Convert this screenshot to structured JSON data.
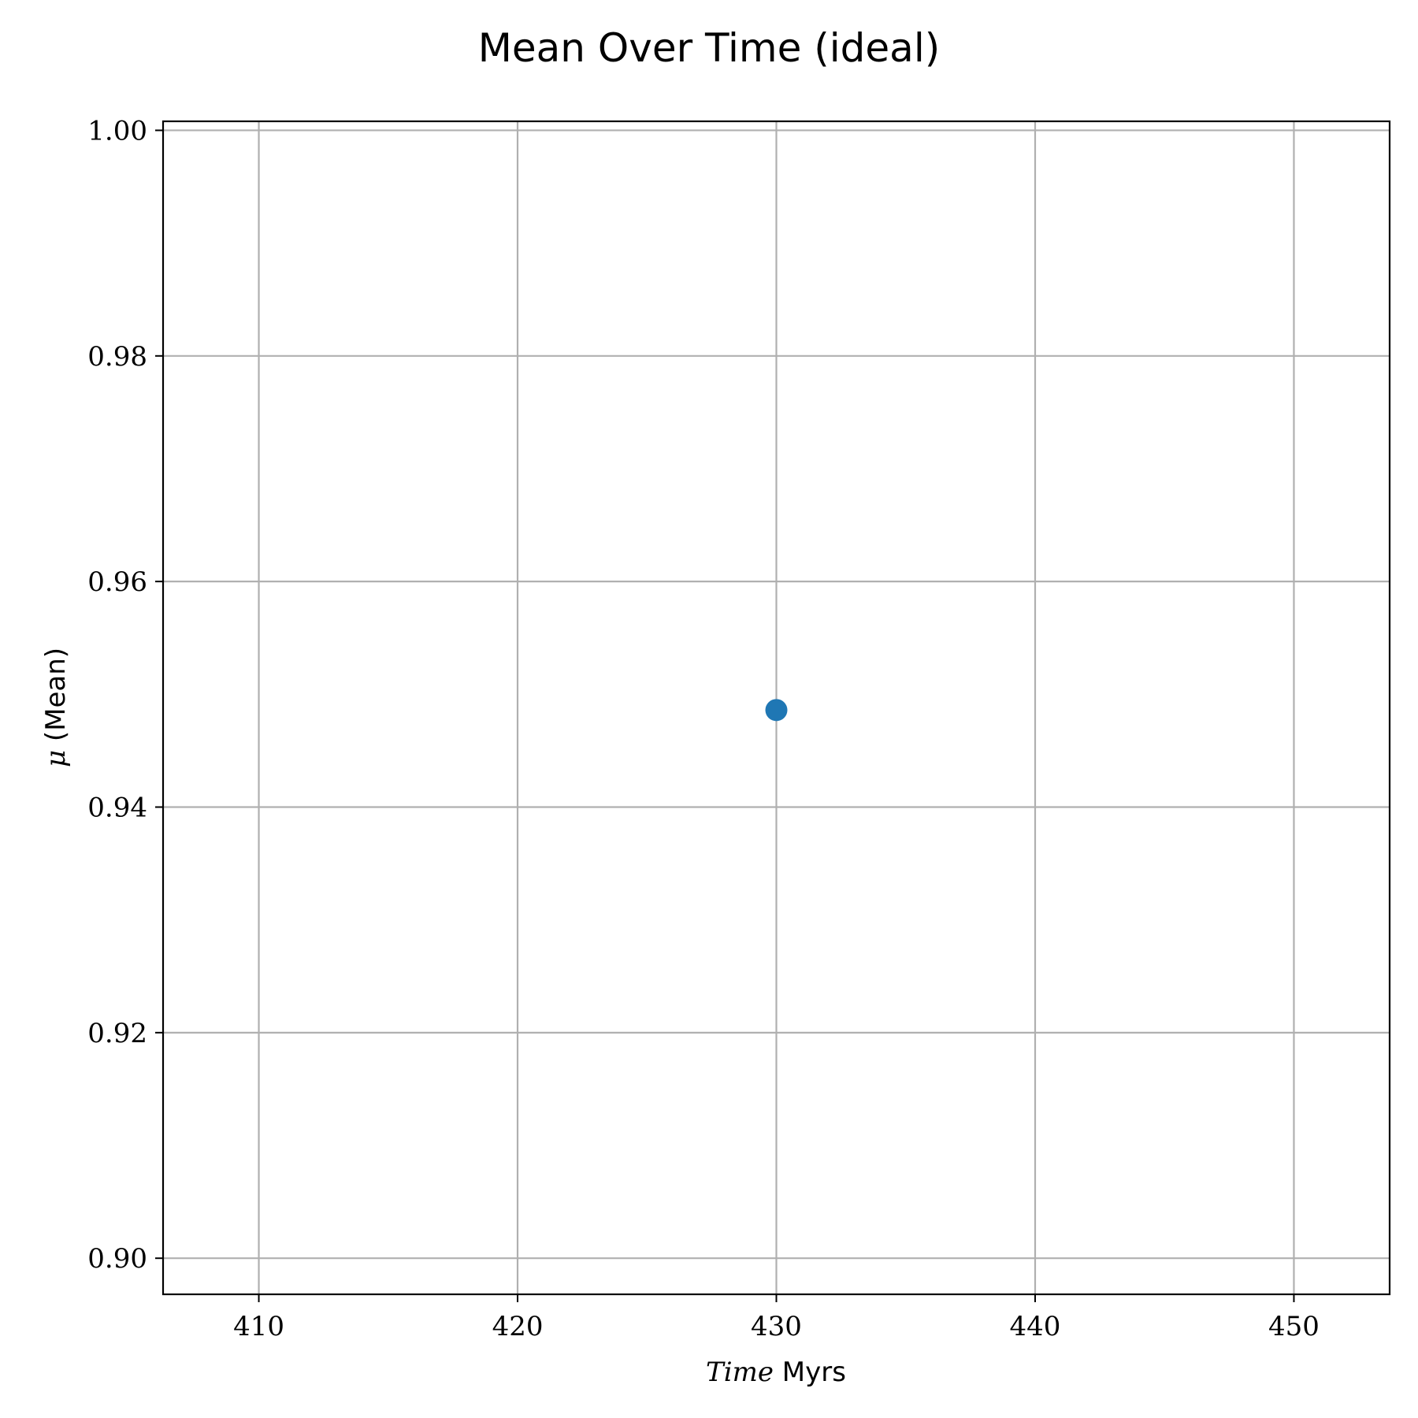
{
  "chart_data": {
    "type": "scatter",
    "title": "Mean Over Time (ideal)",
    "xlabel": {
      "symbol": "Time",
      "text": " Myrs"
    },
    "ylabel": {
      "symbol": "μ",
      "text": " (Mean)"
    },
    "xlim": [
      406.3,
      453.7
    ],
    "ylim": [
      0.8968,
      1.0008
    ],
    "xticks": [
      410,
      420,
      430,
      440,
      450
    ],
    "xtick_labels": [
      "410",
      "420",
      "430",
      "440",
      "450"
    ],
    "yticks": [
      0.9,
      0.92,
      0.94,
      0.96,
      0.98,
      1.0
    ],
    "ytick_labels": [
      "0.90",
      "0.92",
      "0.94",
      "0.96",
      "0.98",
      "1.00"
    ],
    "grid": true,
    "series": [
      {
        "color": "#1f77b4",
        "marker": "circle",
        "points": [
          {
            "x": 430,
            "y": 0.9486
          }
        ]
      }
    ]
  }
}
